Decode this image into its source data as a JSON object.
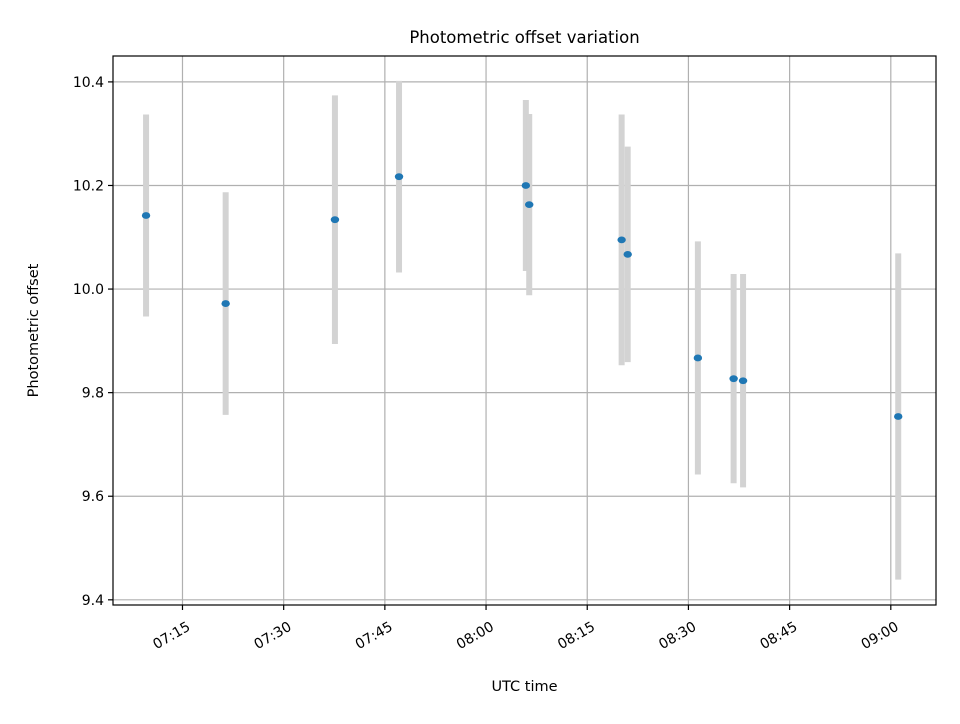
{
  "chart_data": {
    "type": "scatter",
    "title": "Photometric offset variation",
    "xlabel": "UTC time",
    "ylabel": "Photometric offset",
    "xlim": [
      "07:04:42",
      "09:06:42"
    ],
    "ylim": [
      9.39,
      10.45
    ],
    "x_ticks": [
      "07:15",
      "07:30",
      "07:45",
      "08:00",
      "08:15",
      "08:30",
      "08:45",
      "09:00"
    ],
    "y_ticks": [
      9.4,
      9.6,
      9.8,
      10.0,
      10.2,
      10.4
    ],
    "grid": true,
    "colors": {
      "point": "#1f77b4",
      "errorbar": "#d3d3d3",
      "grid": "#b0b0b0"
    },
    "points": [
      {
        "x": "07:09:36",
        "y": 10.142,
        "err": 0.195
      },
      {
        "x": "07:21:24",
        "y": 9.972,
        "err": 0.215
      },
      {
        "x": "07:37:36",
        "y": 10.134,
        "err": 0.24
      },
      {
        "x": "07:47:06",
        "y": 10.217,
        "err": 0.185
      },
      {
        "x": "08:05:54",
        "y": 10.2,
        "err": 0.165
      },
      {
        "x": "08:06:24",
        "y": 10.163,
        "err": 0.175
      },
      {
        "x": "08:20:06",
        "y": 10.095,
        "err": 0.242
      },
      {
        "x": "08:21:00",
        "y": 10.067,
        "err": 0.208
      },
      {
        "x": "08:31:24",
        "y": 9.867,
        "err": 0.225
      },
      {
        "x": "08:36:42",
        "y": 9.827,
        "err": 0.202
      },
      {
        "x": "08:38:06",
        "y": 9.823,
        "err": 0.206
      },
      {
        "x": "09:01:06",
        "y": 9.754,
        "err": 0.315
      }
    ]
  }
}
